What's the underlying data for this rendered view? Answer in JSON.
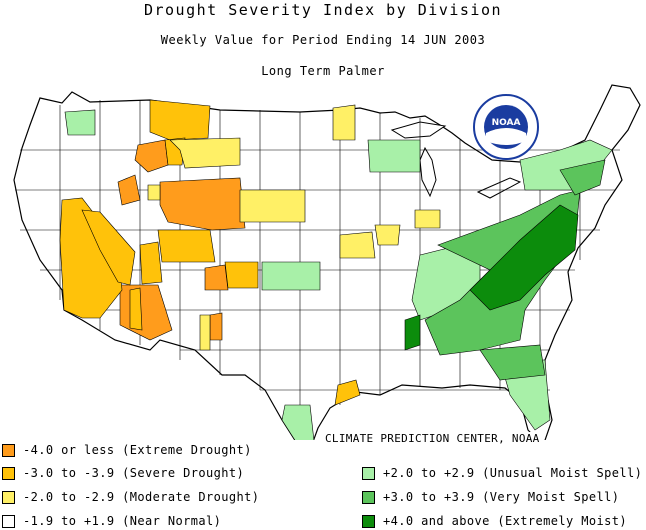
{
  "header": {
    "title": "Drought Severity Index by Division",
    "subtitle": "Weekly Value for Period Ending 14 JUN 2003",
    "index_name": "Long Term Palmer"
  },
  "logo": {
    "text": "NOAA"
  },
  "credit": "CLIMATE PREDICTION CENTER, NOAA",
  "colors": {
    "extreme_drought": "#ff9c1c",
    "severe_drought": "#ffc20a",
    "moderate_drought": "#fff066",
    "near_normal": "#ffffff",
    "unusual_moist": "#a8f0a8",
    "very_moist": "#5cc45c",
    "extremely_moist": "#0c8c0c"
  },
  "legend": [
    {
      "label": "-4.0 or less (Extreme Drought)",
      "color": "#ff9c1c"
    },
    {
      "label": "-3.0 to -3.9 (Severe Drought)",
      "color": "#ffc20a"
    },
    {
      "label": "-2.0 to -2.9 (Moderate Drought)",
      "color": "#fff066"
    },
    {
      "label": "-1.9 to +1.9 (Near Normal)",
      "color": "#ffffff"
    },
    {
      "label": "+2.0 to +2.9 (Unusual Moist Spell)",
      "color": "#a8f0a8"
    },
    {
      "label": "+3.0 to +3.9 (Very Moist Spell)",
      "color": "#5cc45c"
    },
    {
      "label": "+4.0 and above (Extremely Moist)",
      "color": "#0c8c0c"
    }
  ]
}
